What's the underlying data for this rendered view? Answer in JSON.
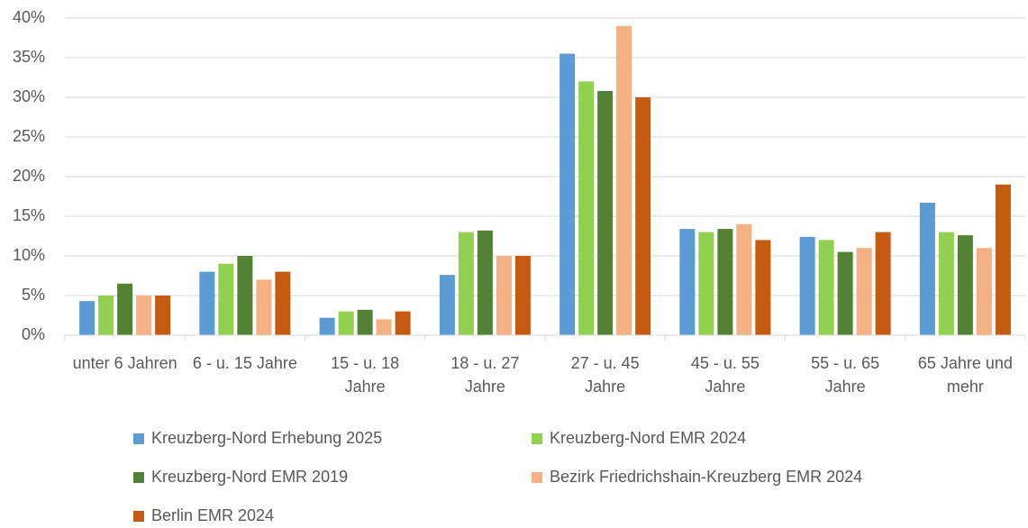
{
  "chart_data": {
    "type": "bar",
    "categories": [
      "unter 6 Jahren",
      "6 - u. 15 Jahre",
      "15 - u. 18 Jahre",
      "18 - u. 27 Jahre",
      "27 - u. 45 Jahre",
      "45 - u. 55 Jahre",
      "55 - u. 65 Jahre",
      "65 Jahre und mehr"
    ],
    "series": [
      {
        "name": "Kreuzberg-Nord Erhebung 2025",
        "color": "#5b9bd5",
        "values": [
          4.3,
          8,
          2.2,
          7.6,
          35.5,
          13.4,
          12.4,
          16.7
        ]
      },
      {
        "name": "Kreuzberg-Nord EMR 2024",
        "color": "#92d050",
        "values": [
          5,
          9,
          3,
          13,
          32,
          13,
          12,
          13
        ]
      },
      {
        "name": "Kreuzberg-Nord EMR 2019",
        "color": "#548235",
        "values": [
          6.5,
          10,
          3.2,
          13.2,
          30.8,
          13.4,
          10.5,
          12.6
        ]
      },
      {
        "name": "Bezirk Friedrichshain-Kreuzberg EMR 2024",
        "color": "#f4b183",
        "values": [
          5,
          7,
          2,
          10,
          39,
          14,
          11,
          11
        ]
      },
      {
        "name": "Berlin EMR 2024",
        "color": "#c55a11",
        "values": [
          5,
          8,
          3,
          10,
          30,
          12,
          13,
          19
        ]
      }
    ],
    "ylim": [
      0,
      40
    ],
    "yticks": [
      {
        "value": 0,
        "label": "0%"
      },
      {
        "value": 5,
        "label": "5%"
      },
      {
        "value": 10,
        "label": "10%"
      },
      {
        "value": 15,
        "label": "15%"
      },
      {
        "value": 20,
        "label": "20%"
      },
      {
        "value": 25,
        "label": "25%"
      },
      {
        "value": 30,
        "label": "30%"
      },
      {
        "value": 35,
        "label": "35%"
      },
      {
        "value": 40,
        "label": "40%"
      }
    ],
    "grid": true
  }
}
